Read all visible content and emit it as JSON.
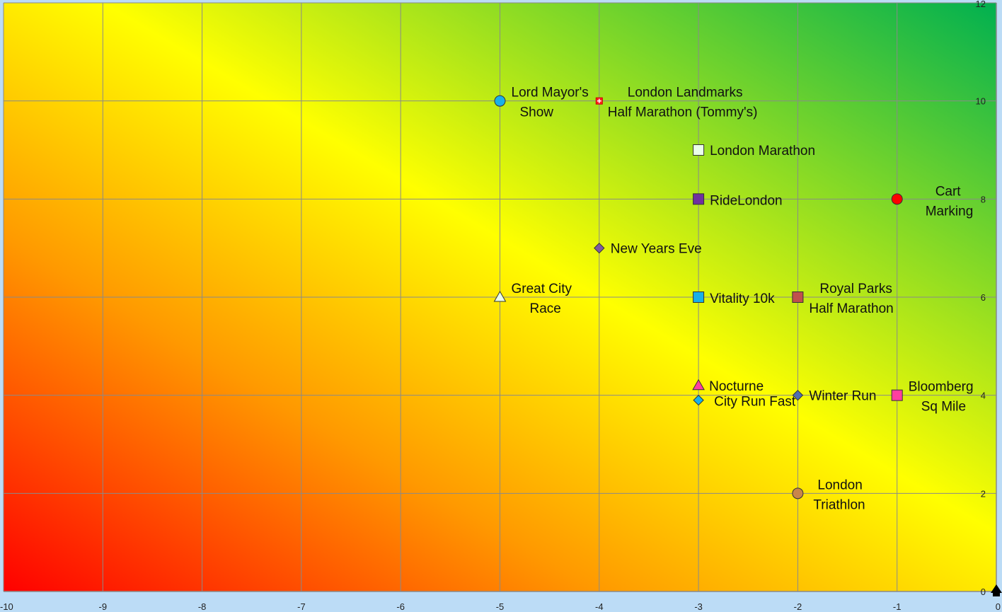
{
  "chart_data": {
    "type": "scatter",
    "title": "",
    "xlabel": "",
    "ylabel": "",
    "xlim": [
      -10,
      0
    ],
    "ylim": [
      0,
      12
    ],
    "grid": true,
    "x_ticks": [
      "-10",
      "-9",
      "-8",
      "-7",
      "-6",
      "-5",
      "-4",
      "-3",
      "-2",
      "-1",
      "0"
    ],
    "y_ticks": [
      "0",
      "2",
      "4",
      "6",
      "8",
      "10",
      "12"
    ],
    "background": {
      "type": "diagonal-gradient",
      "colors": [
        "#ff0000",
        "#ff9900",
        "#ffff00",
        "#00b050"
      ]
    },
    "points": [
      {
        "lines": [
          "Lord Mayor's",
          "Show"
        ],
        "x": -5,
        "y": 10,
        "marker": "circle",
        "color": "#1ab0e8"
      },
      {
        "lines": [
          "London Landmarks",
          "Half Marathon (Tommy's)"
        ],
        "x": -4,
        "y": 10,
        "marker": "plus-square",
        "color": "#ff2020"
      },
      {
        "lines": [
          "London Marathon"
        ],
        "x": -3,
        "y": 9,
        "marker": "square",
        "color": "#eaffea"
      },
      {
        "lines": [
          "RideLondon"
        ],
        "x": -3,
        "y": 8,
        "marker": "square",
        "color": "#7030a0"
      },
      {
        "lines": [
          "Cart",
          "Marking"
        ],
        "x": -1,
        "y": 8,
        "marker": "circle",
        "color": "#ff0000"
      },
      {
        "lines": [
          "New Years Eve"
        ],
        "x": -4,
        "y": 7,
        "marker": "diamond",
        "color": "#7e5aa0"
      },
      {
        "lines": [
          "Great City",
          "Race"
        ],
        "x": -5,
        "y": 6,
        "marker": "triangle",
        "color": "#eaffea"
      },
      {
        "lines": [
          "Vitality 10k"
        ],
        "x": -3,
        "y": 6,
        "marker": "square",
        "color": "#1ab0e8"
      },
      {
        "lines": [
          "Royal Parks",
          "Half Marathon"
        ],
        "x": -2,
        "y": 6,
        "marker": "square",
        "color": "#c0504d"
      },
      {
        "lines": [
          "Nocturne"
        ],
        "x": -3,
        "y": 4.2,
        "marker": "triangle",
        "color": "#ff3fa0"
      },
      {
        "lines": [
          "City Run Fast"
        ],
        "x": -3,
        "y": 3.9,
        "marker": "diamond",
        "color": "#1ab0e8"
      },
      {
        "lines": [
          "Winter Run"
        ],
        "x": -2,
        "y": 4,
        "marker": "diamond",
        "color": "#4f6eb0"
      },
      {
        "lines": [
          "Bloomberg",
          "Sq Mile"
        ],
        "x": -1,
        "y": 4,
        "marker": "square",
        "color": "#ff3fa0"
      },
      {
        "lines": [
          "London",
          "Triathlon"
        ],
        "x": -2,
        "y": 2,
        "marker": "circle",
        "color": "#c8864a"
      }
    ]
  }
}
